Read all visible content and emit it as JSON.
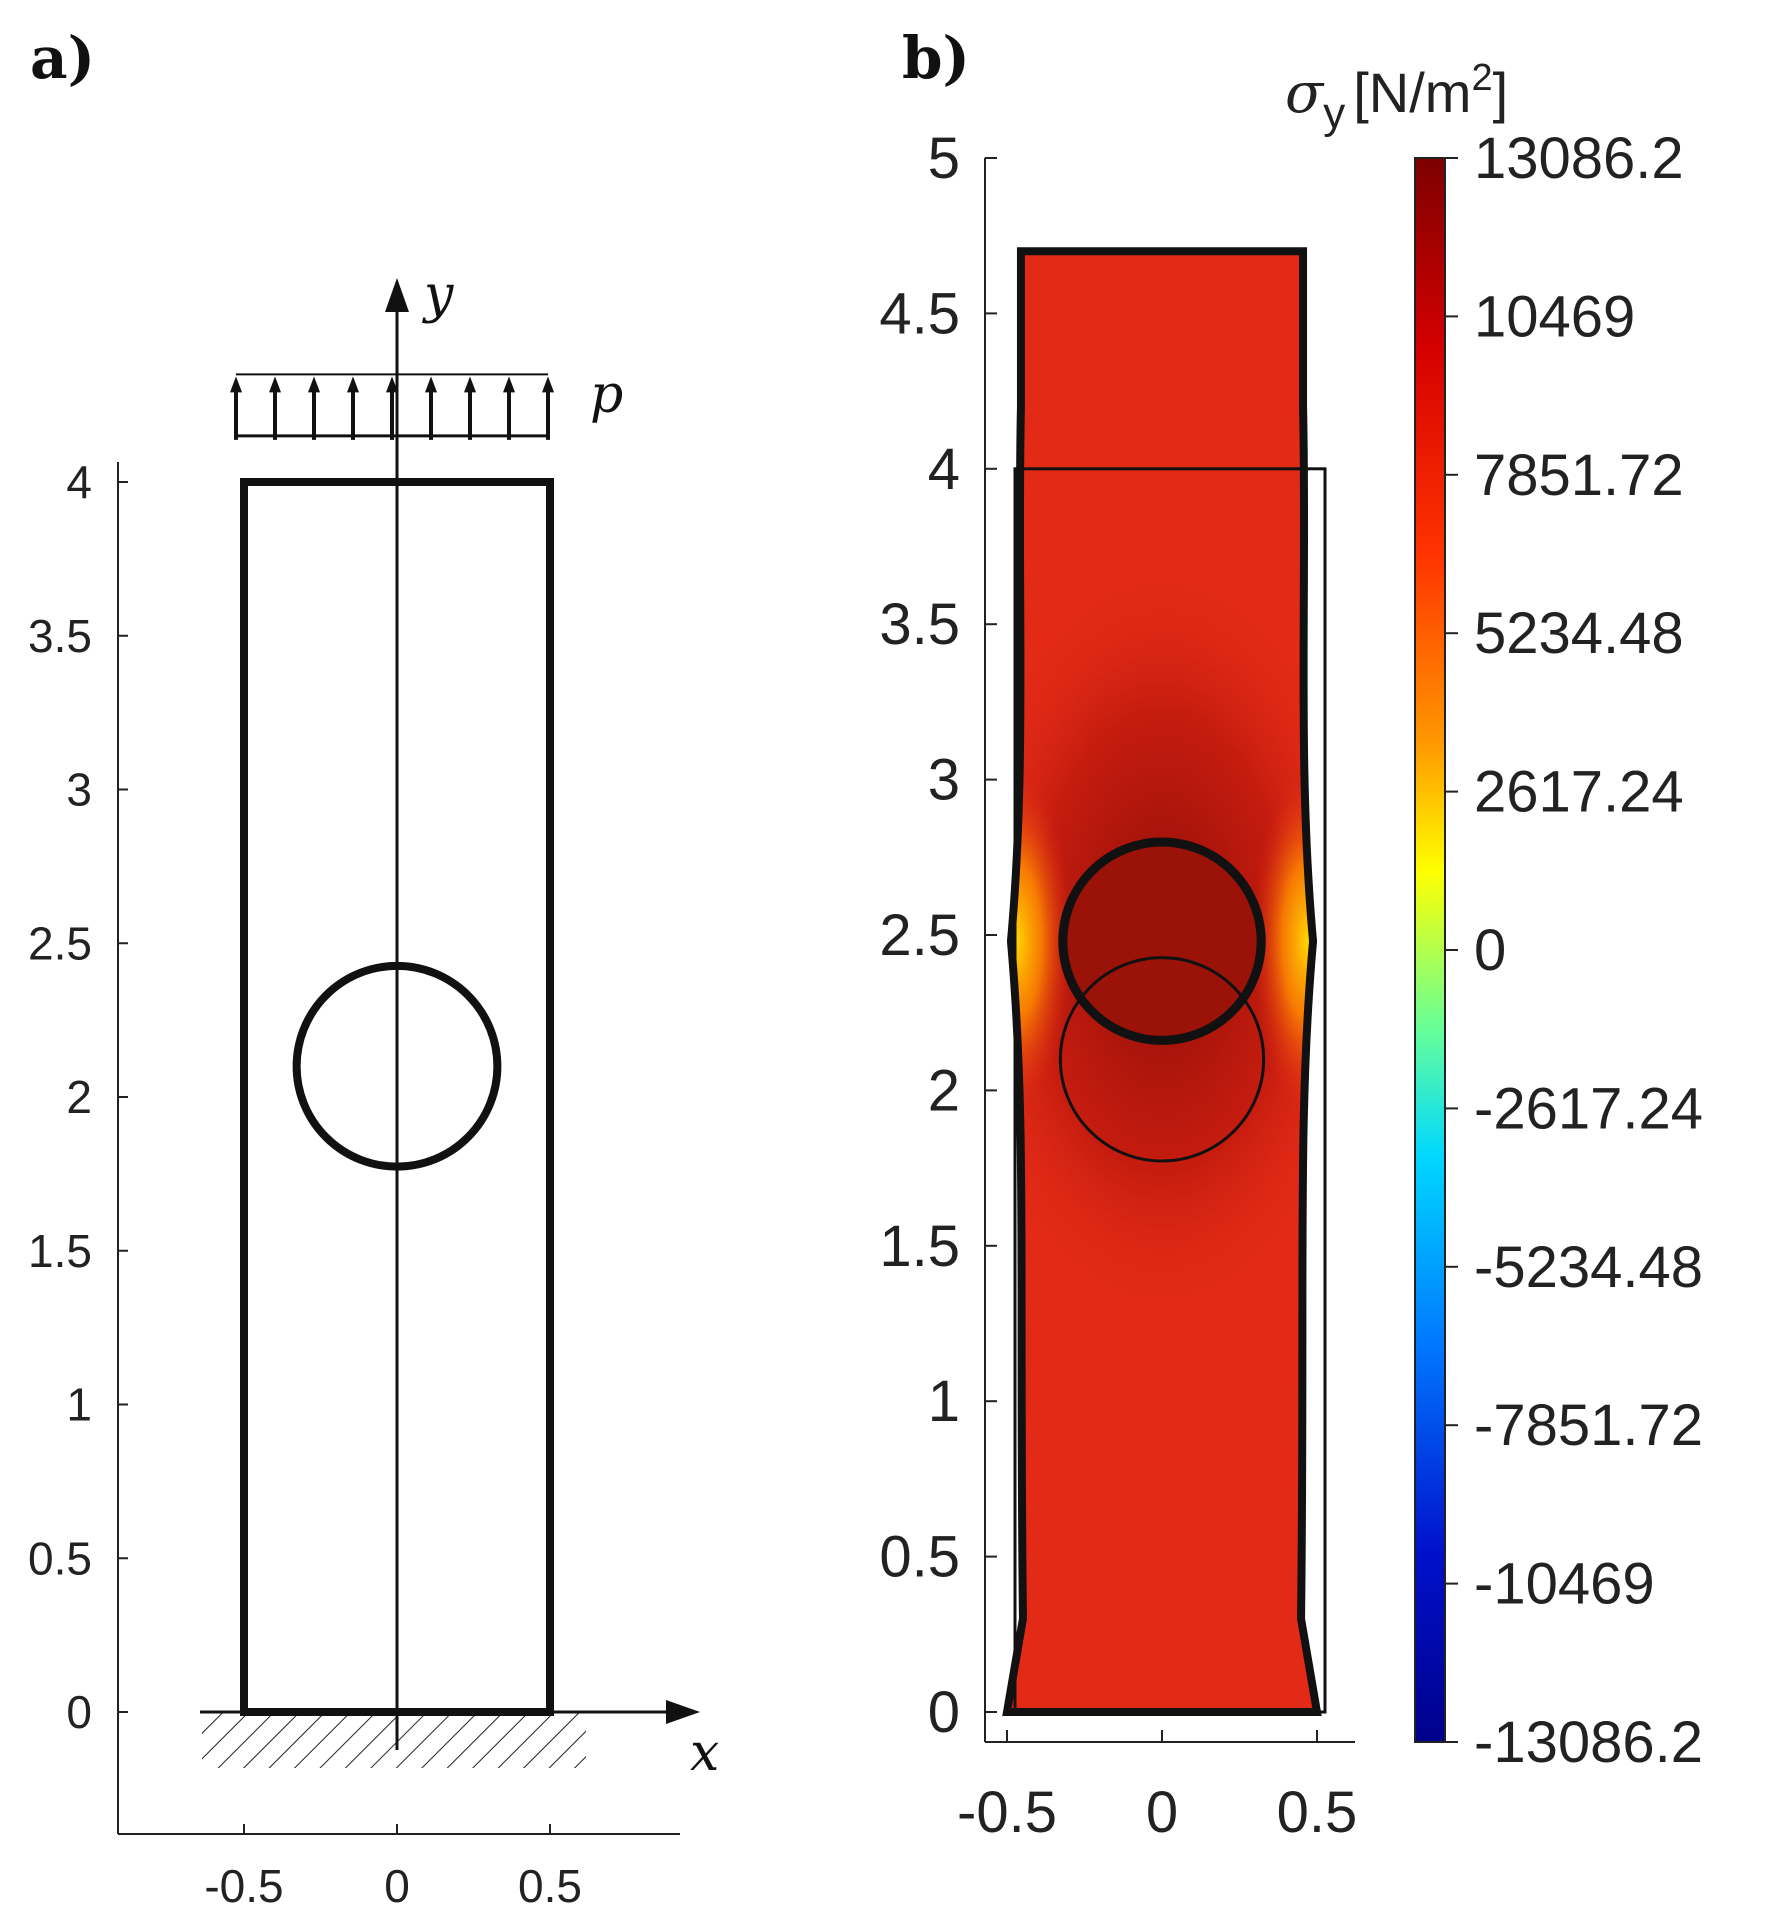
{
  "panel_a": {
    "label": "a)",
    "x_axis_label": "x",
    "y_axis_label": "y",
    "load_label": "p",
    "x_ticks": [
      "-0.5",
      "0",
      "0.5"
    ],
    "y_ticks": [
      "0",
      "0.5",
      "1",
      "1.5",
      "2",
      "2.5",
      "3",
      "3.5",
      "4"
    ],
    "geometry": {
      "plate": {
        "x_min": -0.5,
        "x_max": 0.5,
        "y_min": 0,
        "y_max": 4
      },
      "hole": {
        "cx": 0,
        "cy": 2.1,
        "r": 0.4
      },
      "load_y": [
        4.15,
        4.35
      ]
    }
  },
  "panel_b": {
    "label": "b)",
    "x_ticks": [
      "-0.5",
      "0",
      "0.5"
    ],
    "y_ticks": [
      "0",
      "0.5",
      "1",
      "1.5",
      "2",
      "2.5",
      "3",
      "3.5",
      "4",
      "4.5",
      "5"
    ],
    "colorbar": {
      "title_symbol": "σ",
      "title_sub": "y",
      "title_unit_pre": "[N/m",
      "title_unit_sup": "2",
      "title_unit_post": "]",
      "ticks": [
        "13086.2",
        "10469",
        "7851.72",
        "5234.48",
        "2617.24",
        "0",
        "-2617.24",
        "-5234.48",
        "-7851.72",
        "-10469",
        "-13086.2"
      ],
      "range": [
        -13086.2,
        13086.2
      ]
    },
    "geometry": {
      "undeformed_plate": {
        "x_min": -0.5,
        "x_max": 0.5,
        "y_min": 0,
        "y_max": 4
      },
      "undeformed_hole": {
        "cx": 0,
        "cy": 2.1,
        "r": 0.4
      },
      "deformed_top_y": 4.7,
      "deformed_hole": {
        "cx": 0,
        "cy": 2.48,
        "r": 0.4
      }
    },
    "colors": {
      "field": "#e22a16",
      "hole": "#9a1208",
      "bright": "#ffb000"
    }
  }
}
